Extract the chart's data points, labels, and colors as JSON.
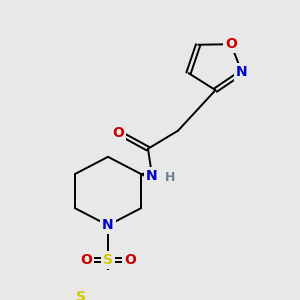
{
  "bg_color": "#e8e8e8",
  "atom_colors": {
    "C": "#000000",
    "N": "#0000cc",
    "O": "#cc0000",
    "S": "#cccc00",
    "H": "#708090"
  },
  "bond_color": "#000000",
  "lw": 1.4
}
